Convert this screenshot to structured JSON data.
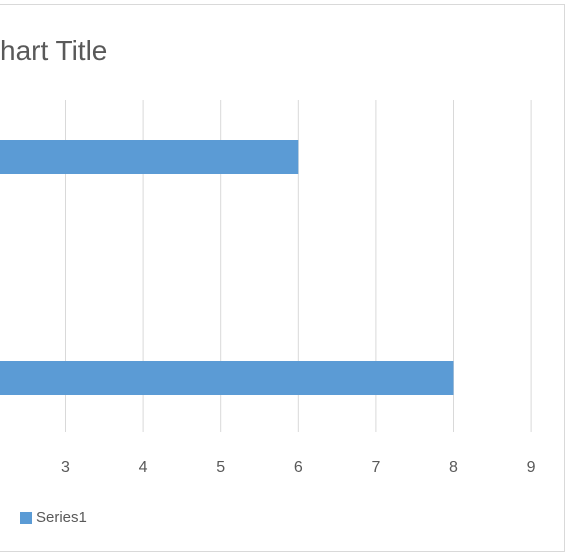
{
  "chart_data": {
    "type": "bar",
    "orientation": "horizontal",
    "title": "hart Title",
    "categories": [
      "",
      ""
    ],
    "series": [
      {
        "name": "Series1",
        "values": [
          6,
          8
        ]
      }
    ],
    "xlabel": "",
    "ylabel": "",
    "x_ticks": [
      "3",
      "4",
      "5",
      "6",
      "7",
      "8",
      "9"
    ],
    "xlim": [
      2.2,
      9
    ],
    "grid": true,
    "legend_position": "bottom-left"
  },
  "colors": {
    "series1": "#5b9bd5",
    "grid": "#d9d9d9",
    "text": "#595959"
  }
}
